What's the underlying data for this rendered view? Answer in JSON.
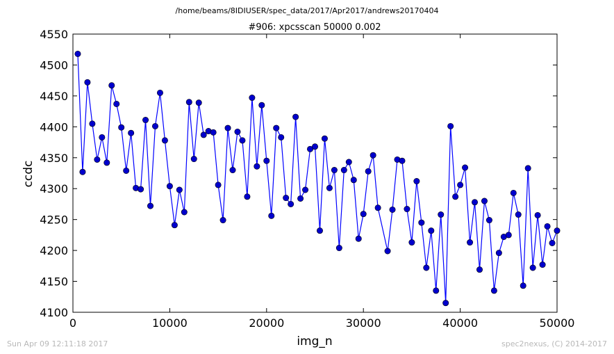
{
  "header": {
    "path": "/home/beams/8IDIUSER/spec_data/2017/Apr2017/andrews20170404"
  },
  "footer": {
    "timestamp": "Sun Apr 09 12:11:18 2017",
    "credit": "spec2nexus, (C) 2014-2017"
  },
  "colors": {
    "series": "#0000ff",
    "marker": "#0000cc"
  },
  "chart_data": {
    "type": "line",
    "title": "#906: xpcsscan 50000 0.002",
    "xlabel": "img_n",
    "ylabel": "ccdc",
    "xlim": [
      0,
      50000
    ],
    "ylim": [
      4100,
      4550
    ],
    "xticks": [
      0,
      10000,
      20000,
      30000,
      40000,
      50000
    ],
    "yticks": [
      4100,
      4150,
      4200,
      4250,
      4300,
      4350,
      4400,
      4450,
      4500,
      4550
    ],
    "xtick_labels": [
      "0",
      "10000",
      "20000",
      "30000",
      "40000",
      "50000"
    ],
    "ytick_labels": [
      "4100",
      "4150",
      "4200",
      "4250",
      "4300",
      "4350",
      "4400",
      "4450",
      "4500",
      "4550"
    ],
    "grid": false,
    "legend": "none",
    "series": [
      {
        "marker": "circle",
        "x": [
          500,
          1000,
          1500,
          2000,
          2500,
          3000,
          3500,
          4000,
          4500,
          5000,
          5500,
          6000,
          6500,
          7000,
          7500,
          8000,
          8500,
          9000,
          9500,
          10000,
          10500,
          11000,
          11500,
          12000,
          12500,
          13000,
          13500,
          14000,
          14500,
          15000,
          15500,
          16000,
          16500,
          17000,
          17500,
          18000,
          18500,
          19000,
          19500,
          20000,
          20500,
          21000,
          21500,
          22000,
          22500,
          23000,
          23500,
          24000,
          24500,
          25000,
          25500,
          26000,
          26500,
          27000,
          27500,
          28000,
          28500,
          29000,
          29500,
          30000,
          30500,
          31000,
          31500,
          32500,
          33000,
          33500,
          34000,
          34500,
          35000,
          35500,
          36000,
          36500,
          37000,
          37500,
          38000,
          38500,
          39000,
          39500,
          40000,
          40500,
          41000,
          41500,
          42000,
          42500,
          43000,
          43500,
          44000,
          44500,
          45000,
          45500,
          46000,
          46500,
          47000,
          47500,
          48000,
          48500,
          49000,
          49500,
          50000
        ],
        "y": [
          4518,
          4327,
          4472,
          4405,
          4347,
          4383,
          4342,
          4467,
          4437,
          4399,
          4329,
          4390,
          4301,
          4299,
          4411,
          4272,
          4401,
          4455,
          4378,
          4304,
          4241,
          4298,
          4262,
          4440,
          4348,
          4439,
          4387,
          4393,
          4391,
          4306,
          4249,
          4398,
          4330,
          4392,
          4378,
          4287,
          4447,
          4336,
          4435,
          4345,
          4256,
          4398,
          4383,
          4285,
          4275,
          4416,
          4284,
          4298,
          4364,
          4368,
          4232,
          4381,
          4301,
          4330,
          4204,
          4330,
          4343,
          4314,
          4219,
          4259,
          4328,
          4354,
          4269,
          4199,
          4266,
          4347,
          4345,
          4267,
          4213,
          4312,
          4245,
          4172,
          4232,
          4135,
          4258,
          4115,
          4401,
          4287,
          4306,
          4334,
          4213,
          4278,
          4169,
          4280,
          4249,
          4135,
          4196,
          4222,
          4225,
          4293,
          4258,
          4143,
          4333,
          4172,
          4257,
          4177,
          4239,
          4212,
          4232
        ]
      }
    ]
  }
}
